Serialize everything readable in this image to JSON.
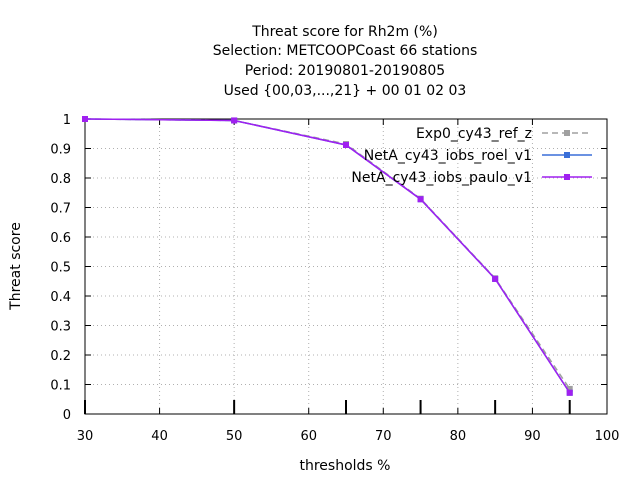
{
  "chart_data": {
    "type": "line",
    "title_lines": [
      "Threat score  for Rh2m (%)",
      "Selection: METCOOPCoast     66 stations",
      "Period: 20190801-20190805",
      "Used {00,03,...,21} + 00 01 02 03"
    ],
    "xlabel": "thresholds %",
    "ylabel": "Threat score",
    "xlim": [
      30,
      100
    ],
    "ylim": [
      0,
      1
    ],
    "x_ticks": [
      30,
      40,
      50,
      60,
      70,
      80,
      90,
      100
    ],
    "y_ticks": [
      0,
      0.1,
      0.2,
      0.3,
      0.4,
      0.5,
      0.6,
      0.7,
      0.8,
      0.9,
      1
    ],
    "y_tick_labels": [
      "0",
      "0.1",
      "0.2",
      "0.3",
      "0.4",
      "0.5",
      "0.6",
      "0.7",
      "0.8",
      "0.9",
      "1"
    ],
    "x": [
      30,
      50,
      65,
      75,
      85,
      95
    ],
    "grid": true,
    "legend_position": "top-right",
    "series": [
      {
        "name": "Exp0_cy43_ref_z",
        "values": [
          1.0,
          0.995,
          0.915,
          0.73,
          0.46,
          0.085
        ],
        "color": "#a0a0a0",
        "dash": true
      },
      {
        "name": "NetA_cy43_iobs_roel_v1",
        "values": [
          1.0,
          0.995,
          0.912,
          0.728,
          0.458,
          0.072
        ],
        "color": "#3a6fd8",
        "dash": false
      },
      {
        "name": "NetA_cy43_iobs_paulo_v1",
        "values": [
          1.0,
          0.995,
          0.912,
          0.728,
          0.458,
          0.072
        ],
        "color": "#a020f0",
        "dash": false
      }
    ]
  }
}
